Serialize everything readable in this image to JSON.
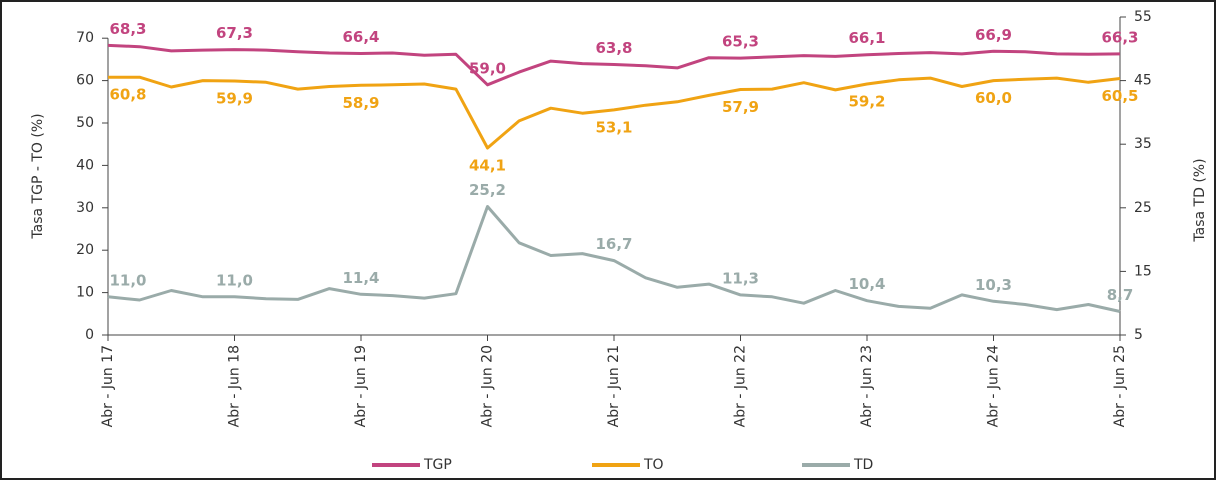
{
  "chart_data": {
    "type": "line",
    "categories": [
      "Abr - Jun 17",
      null,
      null,
      null,
      "Abr - Jun 18",
      null,
      null,
      null,
      "Abr - Jun 19",
      null,
      null,
      null,
      "Abr - Jun 20",
      null,
      null,
      null,
      "Abr - Jun 21",
      null,
      null,
      null,
      "Abr - Jun 22",
      null,
      null,
      null,
      "Abr - Jun 23",
      null,
      null,
      null,
      "Abr - Jun 24",
      null,
      null,
      null,
      "Abr - Jun 25"
    ],
    "ylabel": "Tasa TGP - TO (%)",
    "y2label": "Tasa TD (%)",
    "ylim": [
      0,
      75
    ],
    "yticks": [
      0,
      10,
      20,
      30,
      40,
      50,
      60,
      70
    ],
    "y2lim": [
      5,
      55
    ],
    "y2ticks": [
      5,
      15,
      25,
      35,
      45,
      55
    ],
    "legend": "bottom",
    "series": [
      {
        "name": "TGP",
        "color": "#c2447f",
        "label_side": "above",
        "values": [
          68.3,
          68.0,
          67.0,
          67.2,
          67.3,
          67.2,
          66.8,
          66.5,
          66.4,
          66.5,
          66.0,
          66.2,
          59.0,
          62.0,
          64.6,
          64.0,
          63.8,
          63.5,
          63.0,
          65.4,
          65.3,
          65.6,
          65.9,
          65.7,
          66.1,
          66.4,
          66.6,
          66.3,
          66.9,
          66.8,
          66.3,
          66.2,
          66.3
        ],
        "value_labels": [
          "68,3",
          null,
          null,
          null,
          "67,3",
          null,
          null,
          null,
          "66,4",
          null,
          null,
          null,
          "59,0",
          null,
          null,
          null,
          "63,8",
          null,
          null,
          null,
          "65,3",
          null,
          null,
          null,
          "66,1",
          null,
          null,
          null,
          "66,9",
          null,
          null,
          null,
          "66,3"
        ]
      },
      {
        "name": "TO",
        "color": "#f0a313",
        "label_side": "below",
        "values": [
          60.8,
          60.8,
          58.5,
          60.0,
          59.9,
          59.6,
          58.0,
          58.6,
          58.9,
          59.0,
          59.2,
          58.0,
          44.1,
          50.5,
          53.5,
          52.3,
          53.1,
          54.2,
          55.0,
          56.5,
          57.9,
          58.0,
          59.5,
          57.8,
          59.2,
          60.2,
          60.6,
          58.6,
          60.0,
          60.3,
          60.6,
          59.6,
          60.5
        ],
        "value_labels": [
          "60,8",
          null,
          null,
          null,
          "59,9",
          null,
          null,
          null,
          "58,9",
          null,
          null,
          null,
          "44,1",
          null,
          null,
          null,
          "53,1",
          null,
          null,
          null,
          "57,9",
          null,
          null,
          null,
          "59,2",
          null,
          null,
          null,
          "60,0",
          null,
          null,
          null,
          "60,5"
        ]
      },
      {
        "name": "TD",
        "color": "#9aaba9",
        "axis": "y2",
        "label_side": "above",
        "values": [
          11.0,
          10.5,
          12.0,
          11.0,
          11.0,
          10.7,
          10.6,
          12.3,
          11.4,
          11.2,
          10.8,
          11.5,
          25.2,
          19.5,
          17.5,
          17.8,
          16.7,
          14.0,
          12.5,
          13.0,
          11.3,
          11.0,
          10.0,
          12.0,
          10.4,
          9.5,
          9.2,
          11.3,
          10.3,
          9.8,
          9.0,
          9.8,
          8.7
        ],
        "value_labels": [
          "11,0",
          null,
          null,
          null,
          "11,0",
          null,
          null,
          null,
          "11,4",
          null,
          null,
          null,
          "25,2",
          null,
          null,
          null,
          "16,7",
          null,
          null,
          null,
          "11,3",
          null,
          null,
          null,
          "10,4",
          null,
          null,
          null,
          "10,3",
          null,
          null,
          null,
          "8,7"
        ]
      }
    ]
  }
}
